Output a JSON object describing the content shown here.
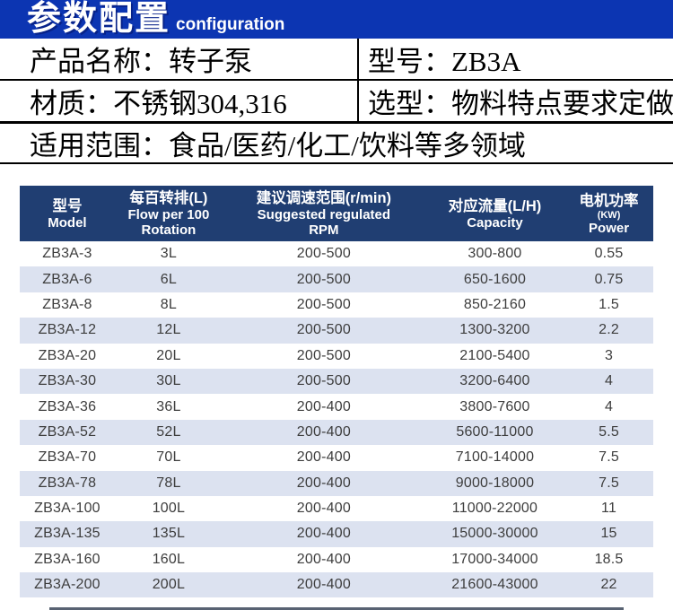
{
  "colors": {
    "banner_bg": "#0c35b2",
    "table_header_bg": "#203e72",
    "stripe_bg": "#dce2f0"
  },
  "banner": {
    "title": "参数配置",
    "subtitle": "configuration"
  },
  "info": {
    "product": "产品名称：转子泵",
    "model": "型号：ZB3A",
    "material": "材质：不锈钢304,316",
    "selection": "选型：物料特点要求定做",
    "scope": "适用范围：食品/医药/化工/饮料等多领域"
  },
  "table": {
    "cell_names": [
      "model",
      "flow",
      "rpm",
      "capacity",
      "power"
    ],
    "columns": [
      {
        "zh": "型号",
        "en": "Model"
      },
      {
        "zh": "每百转排(L)",
        "en": "Flow per 100",
        "en2": "Rotation"
      },
      {
        "zh": "建议调速范围(r/min)",
        "en": "Suggested regulated",
        "en2": "RPM"
      },
      {
        "zh": "对应流量(L/H)",
        "en": "Capacity"
      },
      {
        "zh": "电机功率",
        "kw": "(KW)",
        "en": "Power"
      }
    ],
    "rows": [
      [
        "ZB3A-3",
        "3L",
        "200-500",
        "300-800",
        "0.55"
      ],
      [
        "ZB3A-6",
        "6L",
        "200-500",
        "650-1600",
        "0.75"
      ],
      [
        "ZB3A-8",
        "8L",
        "200-500",
        "850-2160",
        "1.5"
      ],
      [
        "ZB3A-12",
        "12L",
        "200-500",
        "1300-3200",
        "2.2"
      ],
      [
        "ZB3A-20",
        "20L",
        "200-500",
        "2100-5400",
        "3"
      ],
      [
        "ZB3A-30",
        "30L",
        "200-500",
        "3200-6400",
        "4"
      ],
      [
        "ZB3A-36",
        "36L",
        "200-400",
        "3800-7600",
        "4"
      ],
      [
        "ZB3A-52",
        "52L",
        "200-400",
        "5600-11000",
        "5.5"
      ],
      [
        "ZB3A-70",
        "70L",
        "200-400",
        "7100-14000",
        "7.5"
      ],
      [
        "ZB3A-78",
        "78L",
        "200-400",
        "9000-18000",
        "7.5"
      ],
      [
        "ZB3A-100",
        "100L",
        "200-400",
        "11000-22000",
        "11"
      ],
      [
        "ZB3A-135",
        "135L",
        "200-400",
        "15000-30000",
        "15"
      ],
      [
        "ZB3A-160",
        "160L",
        "200-400",
        "17000-34000",
        "18.5"
      ],
      [
        "ZB3A-200",
        "200L",
        "200-400",
        "21600-43000",
        "22"
      ]
    ]
  }
}
